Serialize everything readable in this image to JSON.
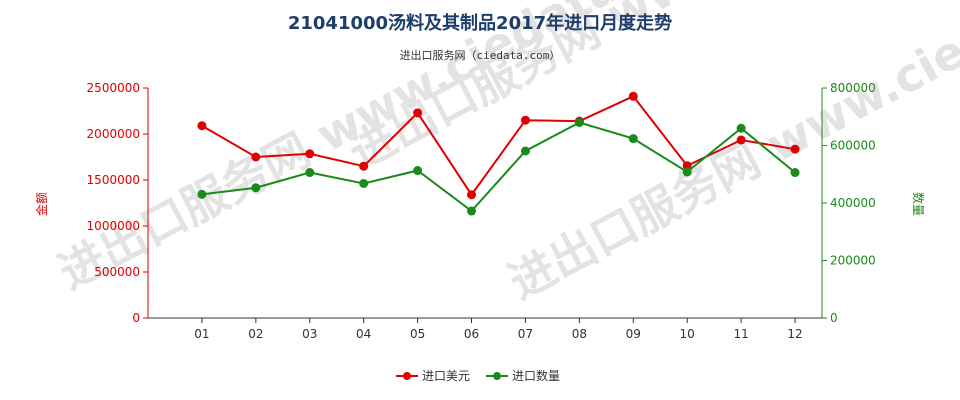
{
  "chart_data": {
    "type": "line",
    "title": "21041000汤料及其制品2017年进口月度走势",
    "subtitle": "进出口服务网（ciedata.com）",
    "watermark": "进出口服务网 www.ciedata.com",
    "categories": [
      "01",
      "02",
      "03",
      "04",
      "05",
      "06",
      "07",
      "08",
      "09",
      "10",
      "11",
      "12"
    ],
    "y_left": {
      "label": "金额",
      "ylim": [
        0,
        2500000
      ],
      "ticks": [
        0,
        500000,
        1000000,
        1500000,
        2000000,
        2500000
      ],
      "color": "#e00000"
    },
    "y_right": {
      "label": "数量",
      "ylim": [
        0,
        800000
      ],
      "ticks": [
        0,
        200000,
        400000,
        600000,
        800000
      ],
      "color": "#1a8a1a"
    },
    "series": [
      {
        "name": "进口美元",
        "axis": "left",
        "color": "#e00000",
        "values": [
          2090000,
          1750000,
          1785000,
          1650000,
          2230000,
          1340000,
          2150000,
          2140000,
          2410000,
          1655000,
          1935000,
          1835000
        ]
      },
      {
        "name": "进口数量",
        "axis": "right",
        "color": "#1a8a1a",
        "values": [
          430000,
          453000,
          506000,
          468000,
          513000,
          372000,
          581000,
          680000,
          624000,
          508000,
          660000,
          506000
        ]
      }
    ],
    "grid": false,
    "legend_position": "bottom-center"
  }
}
